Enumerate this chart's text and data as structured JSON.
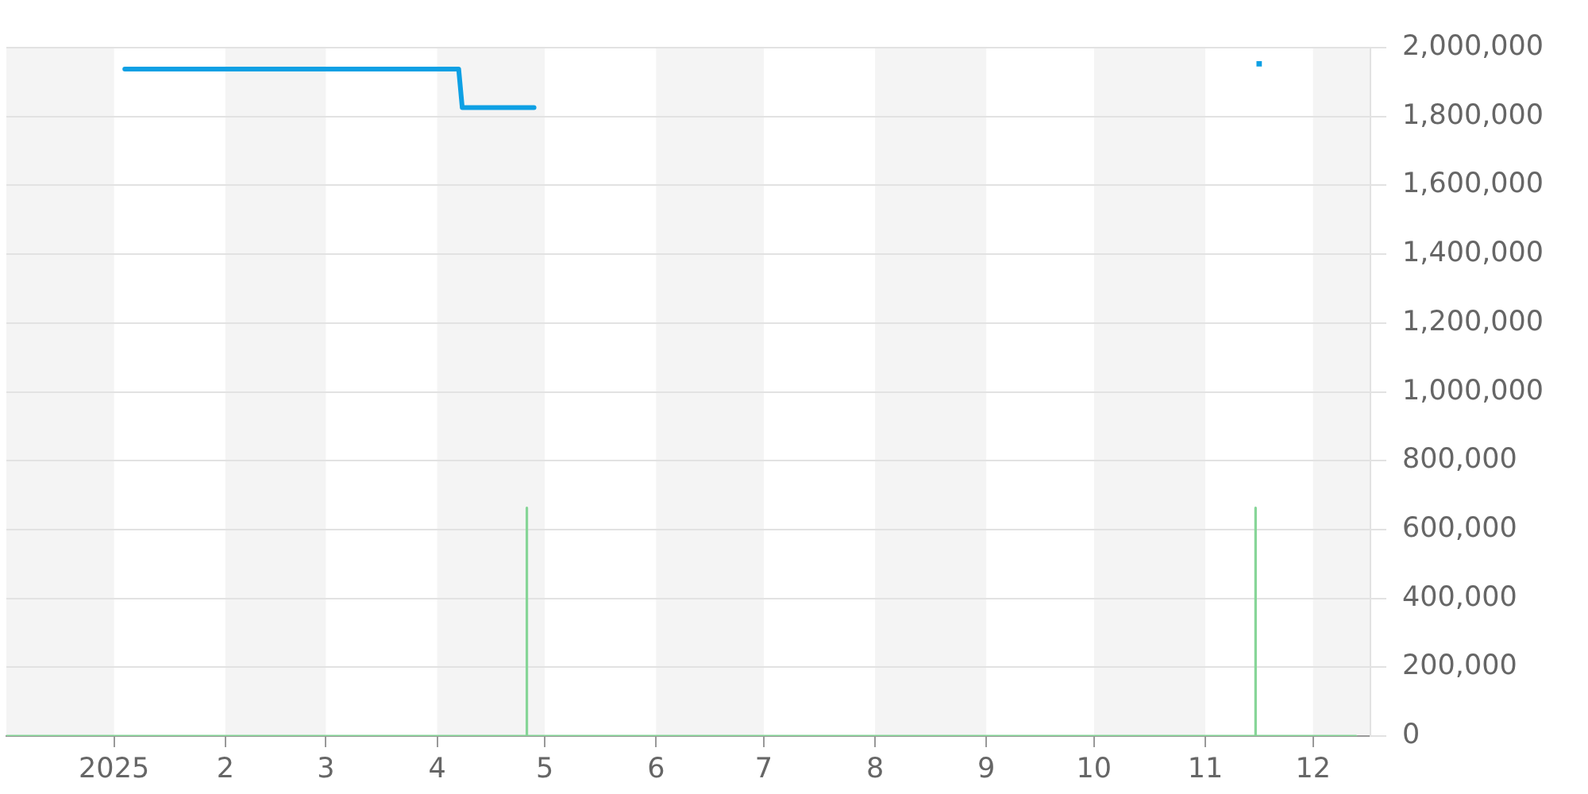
{
  "chart_data": {
    "type": "line",
    "x": [
      "2025-01-04",
      "2025-04-07",
      "2025-04-08",
      "2025-04-28"
    ],
    "series": [
      {
        "color": "#0ea0e4",
        "values": [
          1938000,
          1938000,
          1826000,
          1826000
        ]
      },
      {
        "color": "#86d597",
        "x": [
          "2024-12-02",
          "2025-04-26",
          "2025-04-26",
          "2025-04-26",
          "2025-11-15",
          "2025-11-15",
          "2025-11-15",
          "2025-12-13"
        ],
        "values": [
          0,
          0,
          663000,
          0,
          0,
          663000,
          0,
          0
        ]
      },
      {
        "type": "scatter",
        "color": "#0ea0e4",
        "x": [
          "2025-11-16"
        ],
        "values": [
          1953000
        ],
        "marker": "square"
      }
    ],
    "xlim": [
      "2024-12-02",
      "2025-12-17"
    ],
    "xticks": [
      {
        "value": "2025-01-01",
        "label": "2025"
      },
      {
        "value": "2025-02-01",
        "label": "2"
      },
      {
        "value": "2025-03-01",
        "label": "3"
      },
      {
        "value": "2025-04-01",
        "label": "4"
      },
      {
        "value": "2025-05-01",
        "label": "5"
      },
      {
        "value": "2025-06-01",
        "label": "6"
      },
      {
        "value": "2025-07-01",
        "label": "7"
      },
      {
        "value": "2025-08-01",
        "label": "8"
      },
      {
        "value": "2025-09-01",
        "label": "9"
      },
      {
        "value": "2025-10-01",
        "label": "10"
      },
      {
        "value": "2025-11-01",
        "label": "11"
      },
      {
        "value": "2025-12-01",
        "label": "12"
      }
    ],
    "ylim": [
      0,
      2000000
    ],
    "yticks": [
      0,
      {
        "value": 200000,
        "label": "200,000"
      },
      {
        "value": 400000,
        "label": "400,000"
      },
      {
        "value": 600000,
        "label": "600,000"
      },
      {
        "value": 800000,
        "label": "800,000"
      },
      {
        "value": 1000000,
        "label": "1,000,000"
      },
      {
        "value": 1200000,
        "label": "1,200,000"
      },
      {
        "value": 1400000,
        "label": "1,400,000"
      },
      {
        "value": 1600000,
        "label": "1,600,000"
      },
      {
        "value": 1800000,
        "label": "1,800,000"
      },
      {
        "value": 2000000,
        "label": "2,000,000"
      }
    ],
    "bands": [
      {
        "axis": "x",
        "from": "2024-12-02",
        "to": "2025-01-01",
        "color": "#f4f4f4"
      },
      {
        "axis": "x",
        "from": "2025-02-01",
        "to": "2025-03-01",
        "color": "#f4f4f4"
      },
      {
        "axis": "x",
        "from": "2025-04-01",
        "to": "2025-05-01",
        "color": "#f4f4f4"
      },
      {
        "axis": "x",
        "from": "2025-06-01",
        "to": "2025-07-01",
        "color": "#f4f4f4"
      },
      {
        "axis": "x",
        "from": "2025-08-01",
        "to": "2025-09-01",
        "color": "#f4f4f4"
      },
      {
        "axis": "x",
        "from": "2025-10-01",
        "to": "2025-11-01",
        "color": "#f4f4f4"
      },
      {
        "axis": "x",
        "from": "2025-12-01",
        "to": "2025-12-17",
        "color": "#f4f4f4"
      }
    ],
    "grid": "y",
    "legend": false,
    "marker": "none"
  }
}
